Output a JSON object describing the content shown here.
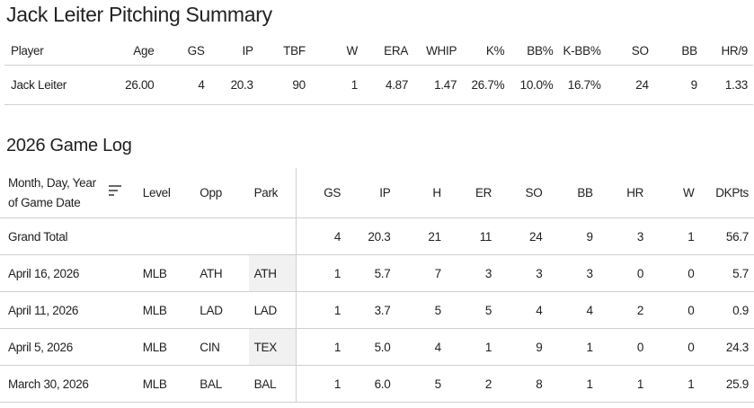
{
  "summary": {
    "title": "Jack Leiter Pitching Summary",
    "columns": [
      "Player",
      "Age",
      "GS",
      "IP",
      "TBF",
      "W",
      "ERA",
      "WHIP",
      "K%",
      "BB%",
      "K-BB%",
      "SO",
      "BB",
      "HR/9"
    ],
    "row": [
      "Jack Leiter",
      "26.00",
      "4",
      "20.3",
      "90",
      "1",
      "4.87",
      "1.47",
      "26.7%",
      "10.0%",
      "16.7%",
      "24",
      "9",
      "1.33"
    ]
  },
  "gamelog": {
    "title": "2026 Game Log",
    "columns": [
      "Month, Day, Year of Game Date",
      "Level",
      "Opp",
      "Park",
      "GS",
      "IP",
      "H",
      "ER",
      "SO",
      "BB",
      "HR",
      "W",
      "DKPts"
    ],
    "sort_icon": "sort-descending-icon",
    "total": [
      "Grand Total",
      "",
      "",
      "",
      "4",
      "20.3",
      "21",
      "11",
      "24",
      "9",
      "3",
      "1",
      "56.7"
    ],
    "rows": [
      [
        "April 16, 2026",
        "MLB",
        "ATH",
        "ATH",
        "1",
        "5.7",
        "7",
        "3",
        "3",
        "3",
        "0",
        "0",
        "5.7"
      ],
      [
        "April 11, 2026",
        "MLB",
        "LAD",
        "LAD",
        "1",
        "3.7",
        "5",
        "5",
        "4",
        "4",
        "2",
        "0",
        "0.9"
      ],
      [
        "April 5, 2026",
        "MLB",
        "CIN",
        "TEX",
        "1",
        "5.0",
        "4",
        "1",
        "9",
        "1",
        "0",
        "0",
        "24.3"
      ],
      [
        "March 30, 2026",
        "MLB",
        "BAL",
        "BAL",
        "1",
        "6.0",
        "5",
        "2",
        "8",
        "1",
        "1",
        "1",
        "25.9"
      ]
    ]
  },
  "colors": {
    "text": "#222222",
    "border": "#d0d0d0",
    "shade": "#f1f1f1"
  }
}
